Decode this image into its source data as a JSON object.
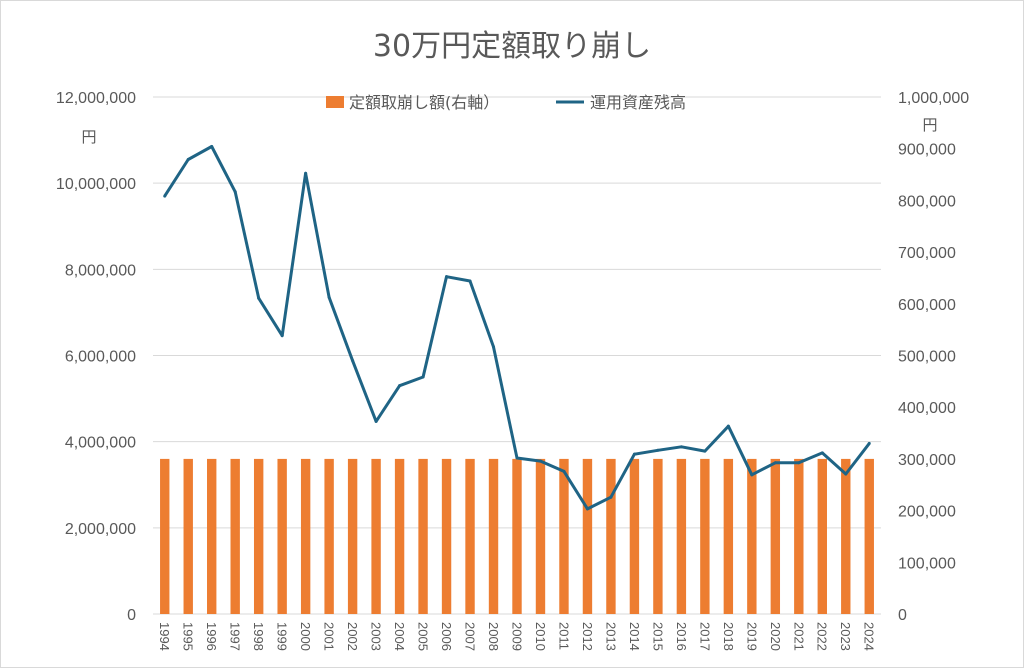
{
  "chart_data": {
    "type": "bar+line",
    "title": "30万円定額取り崩し",
    "categories": [
      "1994",
      "1995",
      "1996",
      "1997",
      "1998",
      "1999",
      "2000",
      "2001",
      "2002",
      "2003",
      "2004",
      "2005",
      "2006",
      "2007",
      "2008",
      "2009",
      "2010",
      "2011",
      "2012",
      "2013",
      "2014",
      "2015",
      "2016",
      "2017",
      "2018",
      "2019",
      "2020",
      "2021",
      "2022",
      "2023",
      "2024"
    ],
    "left_axis": {
      "unit": "円",
      "ylim": [
        0,
        12000000
      ],
      "ticks": [
        "0",
        "2,000,000",
        "4,000,000",
        "6,000,000",
        "8,000,000",
        "10,000,000",
        "12,000,000"
      ]
    },
    "right_axis": {
      "unit": "円",
      "ylim": [
        0,
        1000000
      ],
      "ticks": [
        "0",
        "100,000",
        "200,000",
        "300,000",
        "400,000",
        "500,000",
        "600,000",
        "700,000",
        "800,000",
        "900,000",
        "1,000,000"
      ]
    },
    "series": [
      {
        "name": "定額取崩し額(右軸）",
        "type": "bar",
        "axis": "right",
        "color": "#ED7D31",
        "values": [
          300000,
          300000,
          300000,
          300000,
          300000,
          300000,
          300000,
          300000,
          300000,
          300000,
          300000,
          300000,
          300000,
          300000,
          300000,
          300000,
          300000,
          300000,
          300000,
          300000,
          300000,
          300000,
          300000,
          300000,
          300000,
          300000,
          300000,
          300000,
          300000,
          300000,
          300000
        ]
      },
      {
        "name": "運用資産残高",
        "type": "line",
        "axis": "left",
        "color": "#1F6485",
        "values": [
          9700000,
          10550000,
          10850000,
          9800000,
          7330000,
          6460000,
          10230000,
          7350000,
          5880000,
          4470000,
          5300000,
          5500000,
          7830000,
          7730000,
          6200000,
          3620000,
          3550000,
          3310000,
          2440000,
          2710000,
          3710000,
          3800000,
          3880000,
          3780000,
          4360000,
          3230000,
          3510000,
          3510000,
          3740000,
          3250000,
          3960000
        ]
      }
    ],
    "legend_position": "top",
    "grid": true
  }
}
